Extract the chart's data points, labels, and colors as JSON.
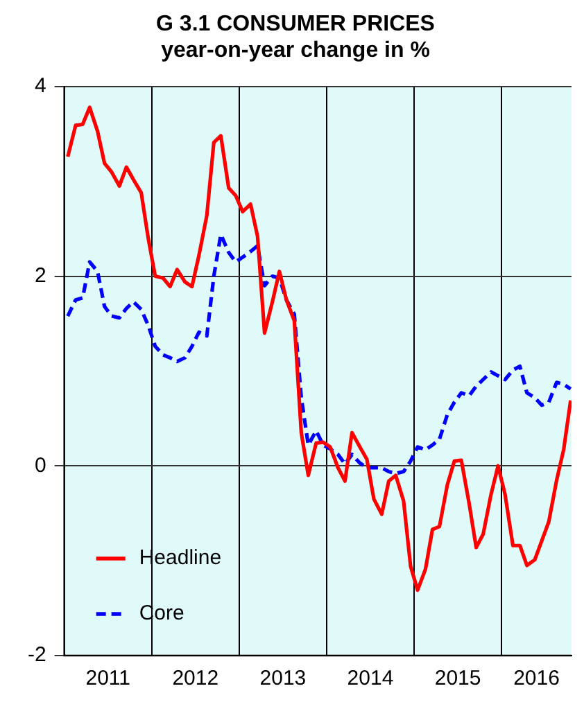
{
  "chart_data": {
    "type": "line",
    "title": "G 3.1 CONSUMER PRICES\nyear-on-year change in %",
    "x": [
      2011.04,
      2011.13,
      2011.21,
      2011.29,
      2011.38,
      2011.46,
      2011.54,
      2011.63,
      2011.71,
      2011.79,
      2011.88,
      2011.96,
      2012.04,
      2012.13,
      2012.21,
      2012.29,
      2012.38,
      2012.46,
      2012.54,
      2012.63,
      2012.71,
      2012.79,
      2012.88,
      2012.96,
      2013.04,
      2013.13,
      2013.21,
      2013.29,
      2013.38,
      2013.46,
      2013.54,
      2013.63,
      2013.71,
      2013.79,
      2013.88,
      2013.96,
      2014.04,
      2014.13,
      2014.21,
      2014.29,
      2014.38,
      2014.46,
      2014.54,
      2014.63,
      2014.71,
      2014.79,
      2014.88,
      2014.96,
      2015.04,
      2015.13,
      2015.21,
      2015.29,
      2015.38,
      2015.46,
      2015.54,
      2015.63,
      2015.71,
      2015.79,
      2015.88,
      2015.96,
      2016.04,
      2016.13,
      2016.21,
      2016.29,
      2016.38,
      2016.46,
      2016.54,
      2016.63,
      2016.71,
      2016.79
    ],
    "series": [
      {
        "name": "Headline",
        "color": "#ff0000",
        "line_style": "solid",
        "values": [
          3.26,
          3.59,
          3.6,
          3.78,
          3.53,
          3.19,
          3.1,
          2.95,
          3.15,
          3.02,
          2.88,
          2.4,
          2.0,
          1.98,
          1.89,
          2.07,
          1.94,
          1.89,
          2.22,
          2.64,
          3.41,
          3.48,
          2.93,
          2.85,
          2.68,
          2.76,
          2.42,
          1.4,
          1.73,
          2.05,
          1.75,
          1.53,
          0.35,
          -0.1,
          0.24,
          0.25,
          0.2,
          -0.02,
          -0.16,
          0.35,
          0.2,
          0.07,
          -0.35,
          -0.51,
          -0.16,
          -0.1,
          -0.37,
          -1.06,
          -1.31,
          -1.09,
          -0.67,
          -0.64,
          -0.2,
          0.05,
          0.06,
          -0.4,
          -0.86,
          -0.72,
          -0.3,
          0.0,
          -0.3,
          -0.84,
          -0.84,
          -1.05,
          -0.99,
          -0.79,
          -0.59,
          -0.15,
          0.17,
          0.69
        ]
      },
      {
        "name": "Core",
        "color": "#0000ff",
        "line_style": "dashed",
        "values": [
          1.58,
          1.75,
          1.77,
          2.15,
          2.05,
          1.68,
          1.58,
          1.56,
          1.66,
          1.73,
          1.65,
          1.48,
          1.26,
          1.17,
          1.14,
          1.1,
          1.14,
          1.26,
          1.41,
          1.37,
          2.0,
          2.44,
          2.25,
          2.15,
          2.2,
          2.26,
          2.32,
          1.9,
          2.0,
          1.98,
          1.75,
          1.6,
          0.72,
          0.22,
          0.37,
          0.22,
          0.18,
          0.12,
          0.02,
          0.12,
          0.03,
          -0.02,
          -0.02,
          -0.02,
          -0.06,
          -0.08,
          -0.06,
          0.05,
          0.2,
          0.17,
          0.22,
          0.28,
          0.54,
          0.67,
          0.77,
          0.74,
          0.84,
          0.91,
          0.99,
          0.95,
          0.91,
          1.01,
          1.05,
          0.77,
          0.72,
          0.64,
          0.67,
          0.88,
          0.86,
          0.81
        ]
      }
    ],
    "xlim": [
      2011,
      2016.8
    ],
    "xticks": [
      {
        "value": 2011,
        "label": null
      },
      {
        "value": 2011.5,
        "label": "2011"
      },
      {
        "value": 2012,
        "label": null
      },
      {
        "value": 2012.5,
        "label": "2012"
      },
      {
        "value": 2013,
        "label": null
      },
      {
        "value": 2013.5,
        "label": "2013"
      },
      {
        "value": 2014,
        "label": null
      },
      {
        "value": 2014.5,
        "label": "2014"
      },
      {
        "value": 2015,
        "label": null
      },
      {
        "value": 2015.5,
        "label": "2015"
      },
      {
        "value": 2016,
        "label": null
      },
      {
        "value": 2016.4,
        "label": "2016"
      }
    ],
    "ylim": [
      -2,
      4
    ],
    "yticks": [
      -2,
      0,
      2,
      4
    ],
    "grid": true,
    "legend": "bottom left",
    "marker": "none"
  }
}
